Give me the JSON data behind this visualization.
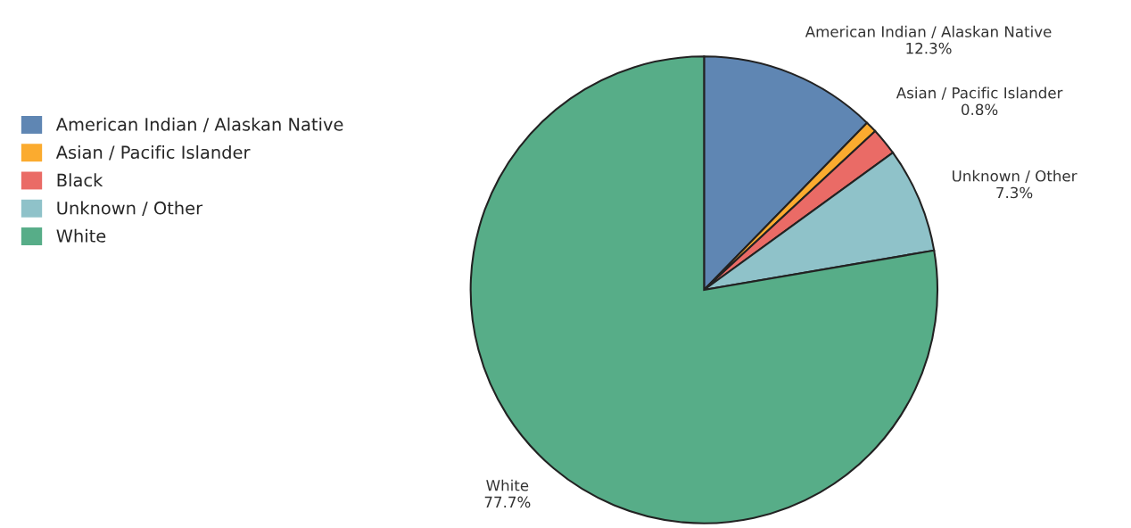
{
  "chart_data": {
    "type": "pie",
    "categories": [
      "American Indian / Alaskan Native",
      "Asian / Pacific Islander",
      "Black",
      "Unknown / Other",
      "White"
    ],
    "values": [
      12.3,
      0.8,
      1.9,
      7.3,
      77.7
    ],
    "value_labels": [
      "12.3%",
      "0.8%",
      null,
      "7.3%",
      "77.7%"
    ],
    "colors": [
      "#5f86b3",
      "#fbab2f",
      "#ea6b66",
      "#8fc2c9",
      "#57ad88"
    ],
    "legend": "left"
  }
}
